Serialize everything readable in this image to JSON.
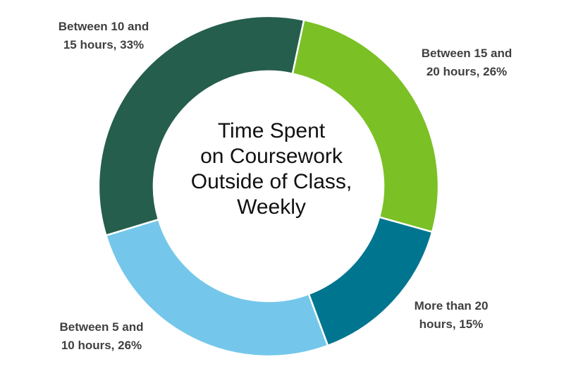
{
  "chart_data": {
    "type": "pie",
    "subtype": "donut",
    "title_lines": [
      "Time Spent",
      "on Coursework",
      "Outside of Class,",
      "Weekly"
    ],
    "start_angle_deg": 12,
    "slices": [
      {
        "label_lines": [
          "Between 15 and",
          "20 hours, 26%"
        ],
        "value": 26,
        "color": "#7bc025"
      },
      {
        "label_lines": [
          "More than 20",
          "hours, 15%"
        ],
        "value": 15,
        "color": "#00758f"
      },
      {
        "label_lines": [
          "Between 5 and",
          "10 hours, 26%"
        ],
        "value": 26,
        "color": "#74c7ea"
      },
      {
        "label_lines": [
          "Between 10 and",
          "15 hours, 33%"
        ],
        "value": 33,
        "color": "#255e4c"
      }
    ],
    "legend": "none"
  }
}
